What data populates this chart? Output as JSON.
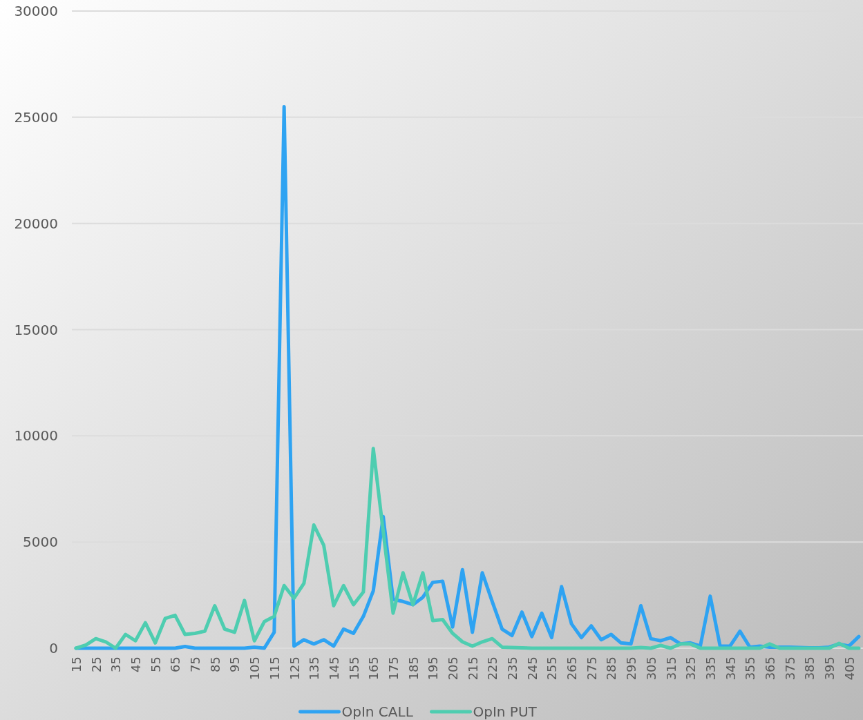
{
  "chart_data": {
    "type": "line",
    "categories": [
      "15",
      null,
      "25",
      null,
      "35",
      null,
      "45",
      null,
      "55",
      null,
      "65",
      null,
      "75",
      null,
      "85",
      null,
      "95",
      null,
      "105",
      null,
      "115",
      null,
      "125",
      null,
      "135",
      null,
      "145",
      null,
      "155",
      null,
      "165",
      null,
      "175",
      null,
      "185",
      null,
      "195",
      null,
      "205",
      null,
      "215",
      null,
      "225",
      null,
      "235",
      null,
      "245",
      null,
      "255",
      null,
      "265",
      null,
      "275",
      null,
      "285",
      null,
      "295",
      null,
      "305",
      null,
      "315",
      null,
      "325",
      null,
      "335",
      null,
      "345",
      null,
      "355",
      null,
      "365",
      null,
      "375",
      null,
      "385",
      null,
      "395",
      null,
      "405",
      null
    ],
    "series": [
      {
        "name": "OpIn CALL",
        "color": "#2ea3f2",
        "values": [
          0,
          0,
          0,
          0,
          0,
          0,
          0,
          0,
          0,
          0,
          0,
          80,
          0,
          0,
          0,
          0,
          0,
          0,
          50,
          0,
          750,
          25500,
          100,
          400,
          200,
          400,
          100,
          900,
          700,
          1500,
          2700,
          6200,
          2300,
          2200,
          2050,
          2400,
          3100,
          3150,
          1000,
          3700,
          750,
          3550,
          2200,
          900,
          600,
          1700,
          550,
          1650,
          500,
          2900,
          1150,
          500,
          1050,
          400,
          650,
          250,
          200,
          2000,
          450,
          350,
          500,
          200,
          250,
          100,
          2450,
          100,
          100,
          800,
          50,
          100,
          50,
          50,
          50,
          30,
          20,
          20,
          50,
          200,
          100,
          550
        ]
      },
      {
        "name": "OpIn PUT",
        "color": "#4ecdb0",
        "values": [
          0,
          150,
          450,
          300,
          0,
          650,
          350,
          1200,
          250,
          1400,
          1550,
          650,
          700,
          800,
          2000,
          900,
          750,
          2250,
          350,
          1250,
          1500,
          2950,
          2350,
          3050,
          5800,
          4850,
          2000,
          2950,
          2050,
          2650,
          9400,
          5500,
          1650,
          3550,
          2050,
          3550,
          1300,
          1350,
          700,
          300,
          100,
          300,
          450,
          50,
          30,
          20,
          0,
          0,
          0,
          0,
          0,
          0,
          0,
          0,
          0,
          0,
          0,
          30,
          0,
          130,
          0,
          200,
          200,
          0,
          0,
          0,
          0,
          0,
          0,
          0,
          200,
          0,
          0,
          0,
          0,
          0,
          0,
          230,
          0,
          0
        ]
      }
    ],
    "ylim": [
      0,
      30000
    ],
    "yticks": [
      0,
      5000,
      10000,
      15000,
      20000,
      25000,
      30000
    ],
    "grid": "y",
    "legend": "bottom",
    "line_style": "solid",
    "marker": "none"
  }
}
